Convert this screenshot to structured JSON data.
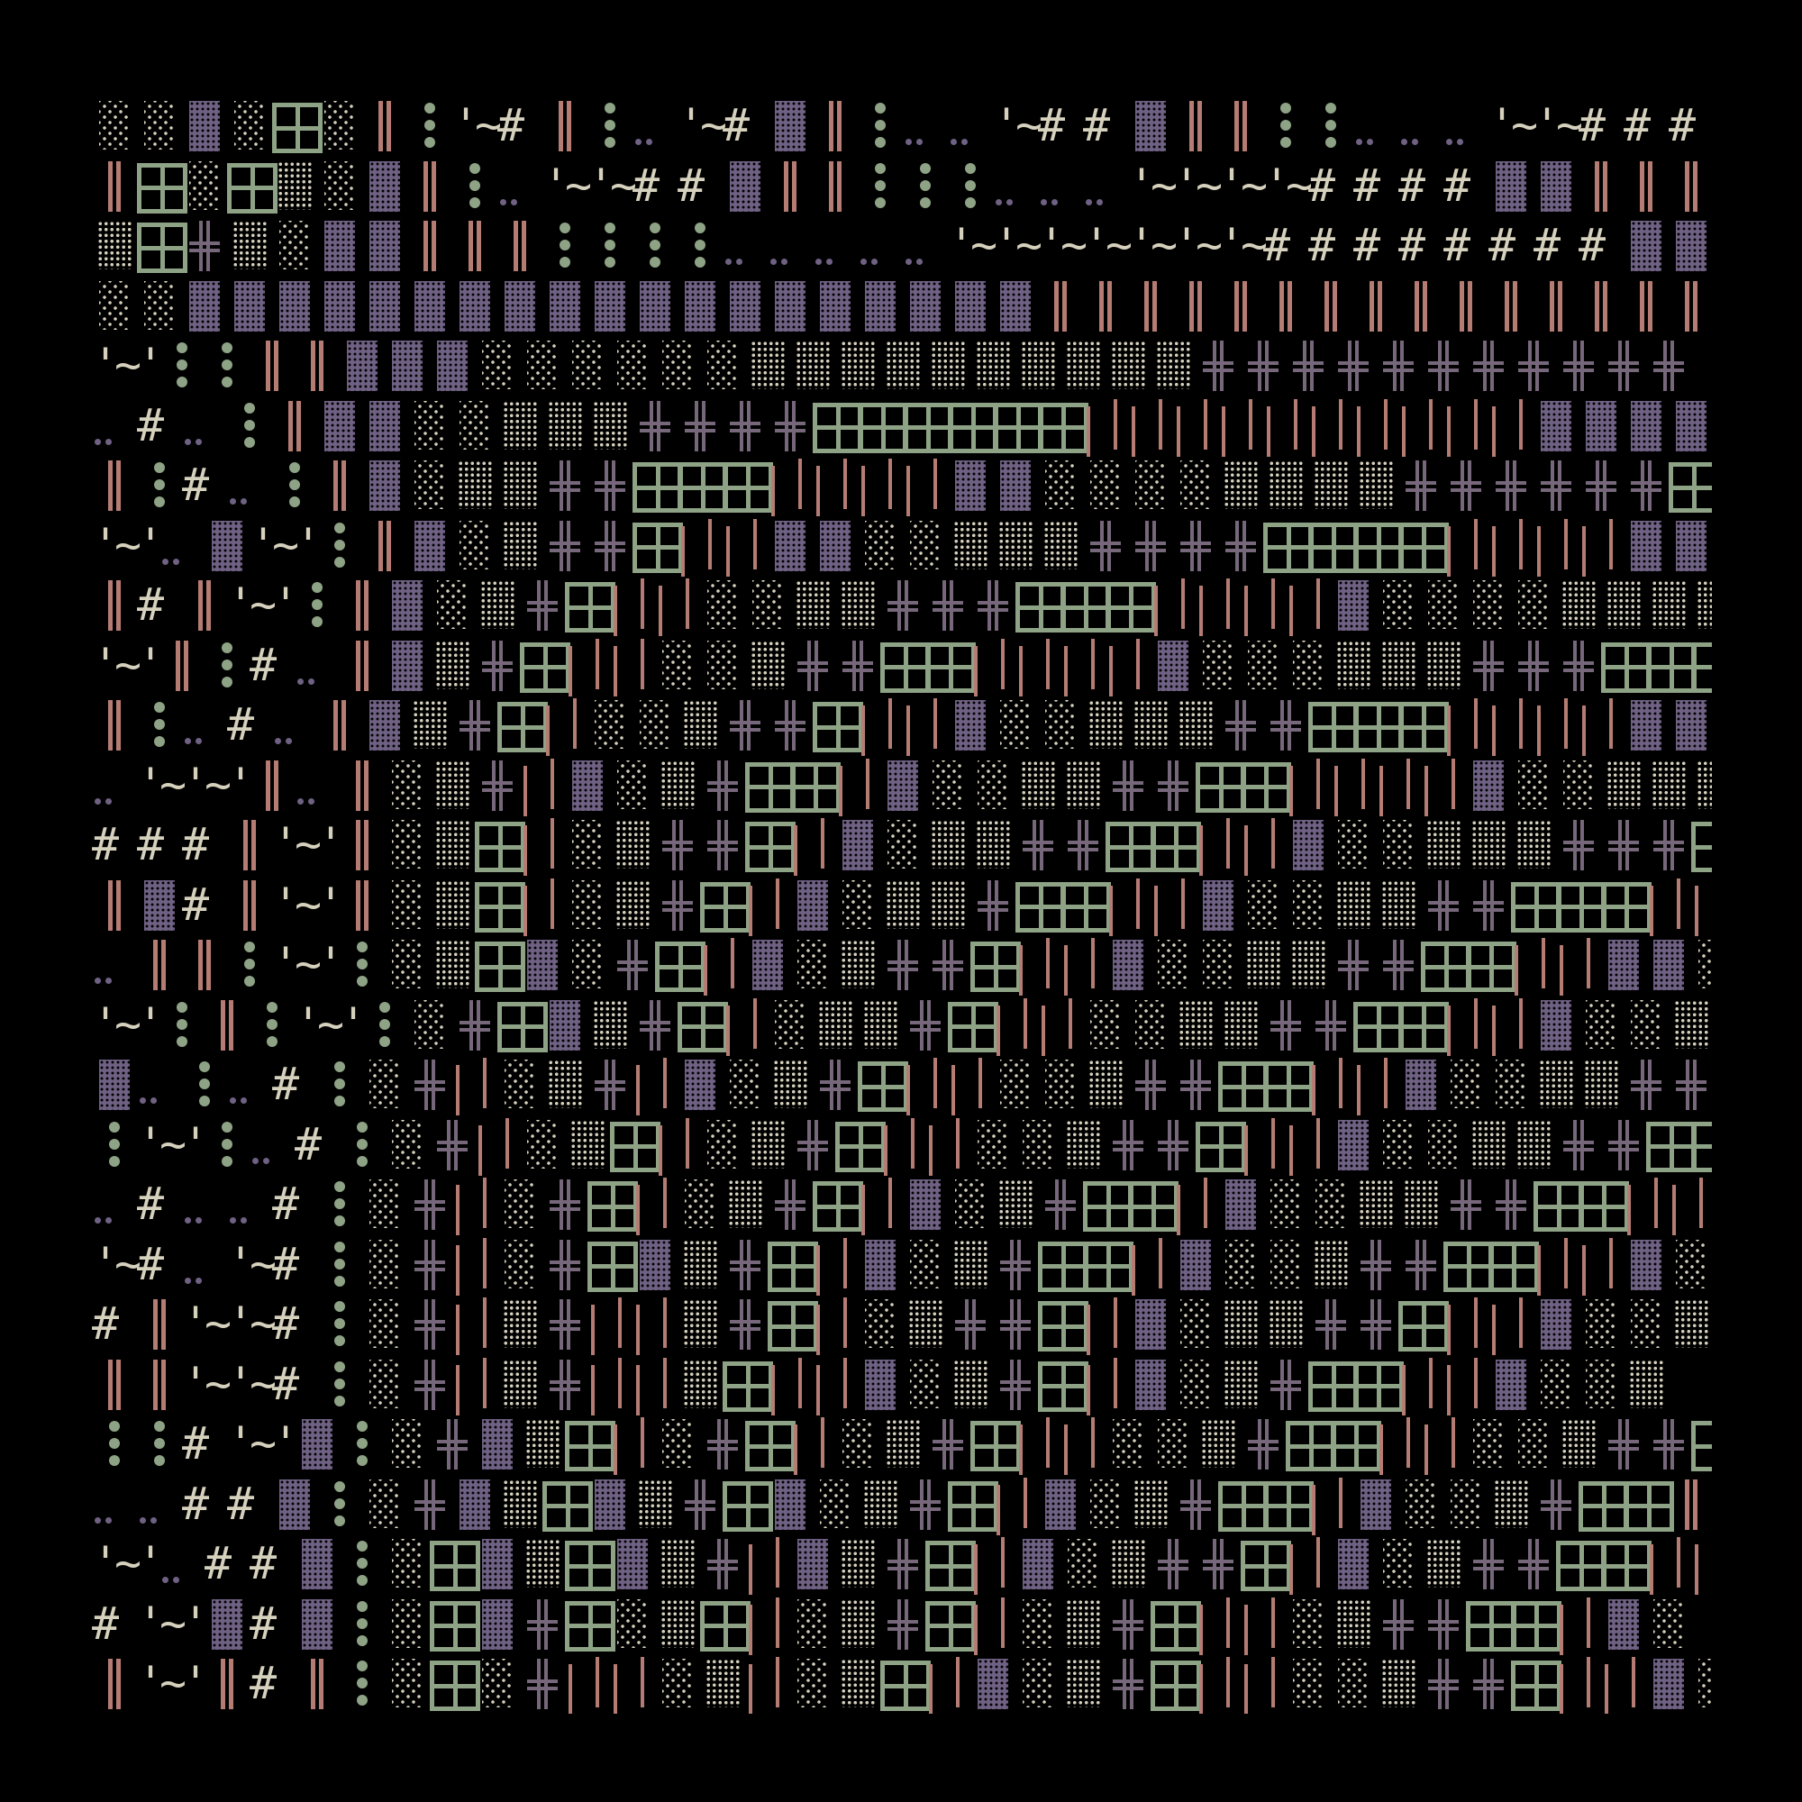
{
  "colors": {
    "background": "#000000",
    "cream": "#d6d1bd",
    "purple": "#6f6183",
    "cross": "#76677a",
    "green": "#8ea385",
    "salmon": "#b57c73"
  },
  "legend": {
    "░": "sparse-dots",
    "▒": "dense-dots",
    "▓": "purple-block",
    "⊞": "green-window",
    "╬": "purple-cross",
    "║": "salmon-double-bar",
    "│": "salmon-single-bar",
    "⁝": "green-dots",
    "‥": "purple-dot-pair"
  },
  "rows": [
    "░░▓░⊞░║⁝'~# ║⁝‥ '~# ▓║⁝‥ ‥ '~# # ▓║║⁝⁝‥ ‥ ‥ '~'~# # # ▓",
    "║⊞░⊞▒░▓║⁝‥ '~'~# # ▓║║⁝⁝⁝‥ ‥ ‥ '~'~'~'~# # # # ▓▓║║║",
    "▒⊞╬▒░▓▓║║║⁝⁝⁝⁝‥ ‥ ‥ ‥ ‥ '~'~'~'~'~'~'~# # # # # # # # ▓▓",
    "░░▓▓▓▓▓▓▓▓▓▓▓▓▓▓▓▓▓▓▓║║║║║║║║║║║║║║║",
    "'~'⁝⁝║║▓▓▓░░░░░░▒▒▒▒▒▒▒▒▒▒╬╬╬╬╬╬╬╬╬╬╬",
    "‥ # ‥ ⁝║▓▓░░▒▒▒╬╬╬╬⊞⊞⊞⊞⊞⊞││││││││││▓▓▓▓░░░",
    "║⁝# ‥ ⁝║▓░▒▒╬╬⊞⊞⊞││││▓▓░░░░▒▒▒▒╬╬╬╬╬╬⊞⊞",
    "'~'‥ ▓'~'⁝║▓░▒╬╬⊞││▓▓░░▒▒▒╬╬╬╬⊞⊞⊞⊞││││▓▓▓░",
    "║# ║'~'⁝║▓░▒╬⊞││░░▒▒╬╬╬⊞⊞⊞││││▓░░░░▒▒▒▒╬",
    "'~'║⁝# ‥ ║▓▒╬⊞││░░▒╬╬⊞⊞││││▓░░░▒▒▒╬╬╬⊞⊞⊞⊞║",
    "║⁝‥ # ‥ ║▓▒╬⊞│░░▒╬╬⊞││▓░░▒▒▒╬╬⊞⊞⊞││││▓▓░░",
    "‥ '~'~'║‥ ║░▒╬│▓░▒╬⊞⊞│▓░░▒▒╬╬⊞⊞││││▓░░▒▒▒",
    "# # # ║'~'║░▒⊞│░▒╬╬⊞│▓░▒▒╬╬⊞⊞││▓░░▒▒▒╬╬╬⊞⊞",
    "║▓# ║'~'║░▒⊞│░▒╬⊞│▓░▒▒╬⊞⊞││▓░░▒▒╬╬⊞⊞⊞││",
    "‥ ║║⁝'~'⁝░▒⊞▓░╬⊞│▓░▒╬╬⊞││▓░░▒▒╬╬⊞⊞││▓▓░",
    "'~'⁝║⁝'~'⁝░╬⊞▓▒╬⊞│░▒▒╬⊞││░░▒▒╬╬⊞⊞││▓░░▒▒",
    "▓‥ ⁝‥ # ⁝░╬│░▒╬│▓░▒╬⊞││░░▒╬╬⊞⊞││▓░░▒▒╬╬⊞",
    "⁝'~'⁝‥ # ⁝░╬│░▒⊞│░▒╬⊞││░░▒╬╬⊞││▓░░▒▒╬╬⊞⊞║",
    "‥ # ‥ ‥ # ⁝░╬│░╬⊞│░▒╬⊞│▓░▒╬⊞⊞│▓░░▒▒╬╬⊞⊞││",
    "'~# ‥ '~# ⁝░╬│░╬⊞▓▒╬⊞│▓░▒╬⊞⊞│▓░░▒╬╬⊞⊞││▓░",
    "# ║'~'~# ⁝░╬│▒╬││▒╬⊞│░▒╬╬⊞│▓░▒▒╬╬⊞││▓░░▒",
    "║║'~'~# ⁝░╬│▒╬││▒⊞││▓░▒╬⊞│▓░▒╬⊞⊞││▓░░▒",
    "⁝⁝# '~'▓⁝░╬▓▒⊞│░╬⊞│░▒╬⊞││░░▒╬⊞⊞││░░▒╬╬⊞",
    "‥ ‥ # # ▓⁝░╬▓▒⊞▓▒╬⊞▓░▒╬⊞│▓░▒╬⊞⊞│▓░░▒╬⊞⊞║",
    "'~'‥ # # ▓⁝░⊞▓▒⊞▓▒╬│▓▒╬⊞│▓░▒╬╬⊞│▓░▒╬╬⊞⊞││",
    "# '~'▓# ▓⁝░⊞▓╬⊞░▒⊞│░▒╬⊞│░▒╬⊞││░▒╬╬⊞⊞│▓░",
    "║'~'║# ║⁝░⊞░╬││░▒│░▒⊞│▓░▒╬⊞││░░▒╬╬⊞││▓░"
  ]
}
